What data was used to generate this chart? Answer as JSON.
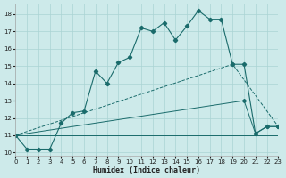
{
  "xlabel": "Humidex (Indice chaleur)",
  "x_ticks": [
    0,
    1,
    2,
    3,
    4,
    5,
    6,
    7,
    8,
    9,
    10,
    11,
    12,
    13,
    14,
    15,
    16,
    17,
    18,
    19,
    20,
    21,
    22,
    23
  ],
  "y_ticks": [
    10,
    11,
    12,
    13,
    14,
    15,
    16,
    17,
    18
  ],
  "xlim": [
    0,
    23
  ],
  "ylim": [
    9.8,
    18.6
  ],
  "bg_color": "#cdeaea",
  "grid_color": "#aad4d4",
  "line_color": "#1a6b6b",
  "series1": {
    "x": [
      0,
      1,
      2,
      3,
      4,
      5,
      6,
      7,
      8,
      9,
      10,
      11,
      12,
      13,
      14,
      15,
      16,
      17,
      18,
      19,
      20,
      21,
      22,
      23
    ],
    "y": [
      11.0,
      10.2,
      10.2,
      10.2,
      11.7,
      12.3,
      12.4,
      14.7,
      14.0,
      15.2,
      15.5,
      17.2,
      17.0,
      17.5,
      16.5,
      17.3,
      18.2,
      17.7,
      17.7,
      15.1,
      15.1,
      11.1,
      11.5,
      11.5
    ]
  },
  "series2": {
    "x": [
      0,
      19,
      23
    ],
    "y": [
      11.0,
      15.1,
      11.5
    ]
  },
  "series3": {
    "x": [
      0,
      20,
      23
    ],
    "y": [
      11.0,
      11.0,
      11.0
    ]
  },
  "series4": {
    "x": [
      0,
      20,
      21,
      22,
      23
    ],
    "y": [
      11.0,
      13.0,
      11.1,
      11.5,
      11.5
    ]
  }
}
